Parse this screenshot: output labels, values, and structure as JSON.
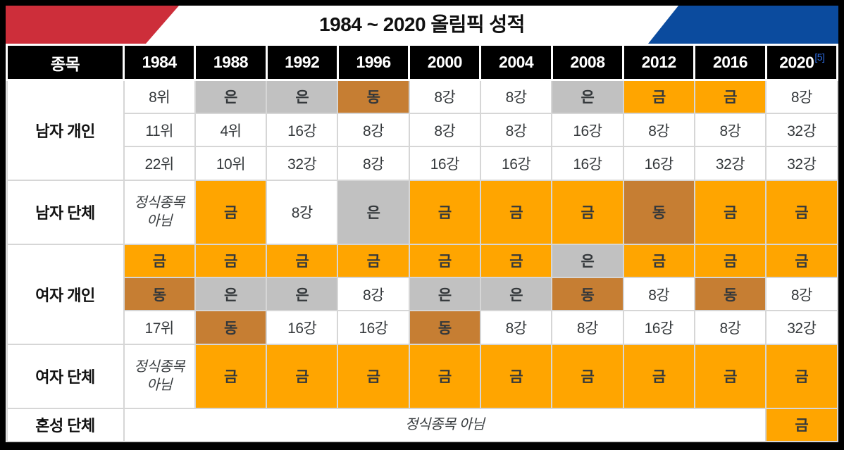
{
  "banner": {
    "title": "1984 ~ 2020 올림픽 성적",
    "left_flag_color": "#CD2E3A",
    "right_flag_color": "#0B4B9E"
  },
  "colors": {
    "gold": "#FFA500",
    "silver": "#C1C1C1",
    "bronze": "#C67E33",
    "header_bg": "#000000",
    "header_text": "#FFFFFF",
    "footnote": "#2E6CDF"
  },
  "table": {
    "corner_header": "종목",
    "years": [
      "1984",
      "1988",
      "1992",
      "1996",
      "2000",
      "2004",
      "2008",
      "2012",
      "2016",
      "2020"
    ],
    "footnote": {
      "year": "2020",
      "marker": "[5]"
    },
    "groups": [
      {
        "label": "남자 개인",
        "rows": [
          [
            {
              "text": "8위"
            },
            {
              "text": "은",
              "medal": "silver"
            },
            {
              "text": "은",
              "medal": "silver"
            },
            {
              "text": "동",
              "medal": "bronze"
            },
            {
              "text": "8강"
            },
            {
              "text": "8강"
            },
            {
              "text": "은",
              "medal": "silver"
            },
            {
              "text": "금",
              "medal": "gold"
            },
            {
              "text": "금",
              "medal": "gold"
            },
            {
              "text": "8강"
            }
          ],
          [
            {
              "text": "11위"
            },
            {
              "text": "4위"
            },
            {
              "text": "16강"
            },
            {
              "text": "8강"
            },
            {
              "text": "8강"
            },
            {
              "text": "8강"
            },
            {
              "text": "16강"
            },
            {
              "text": "8강"
            },
            {
              "text": "8강"
            },
            {
              "text": "32강"
            }
          ],
          [
            {
              "text": "22위"
            },
            {
              "text": "10위"
            },
            {
              "text": "32강"
            },
            {
              "text": "8강"
            },
            {
              "text": "16강"
            },
            {
              "text": "16강"
            },
            {
              "text": "16강"
            },
            {
              "text": "16강"
            },
            {
              "text": "32강"
            },
            {
              "text": "32강"
            }
          ]
        ]
      },
      {
        "label": "남자 단체",
        "tall": true,
        "rows": [
          [
            {
              "text": "정식종목 아님",
              "style": "not-official"
            },
            {
              "text": "금",
              "medal": "gold"
            },
            {
              "text": "8강"
            },
            {
              "text": "은",
              "medal": "silver"
            },
            {
              "text": "금",
              "medal": "gold"
            },
            {
              "text": "금",
              "medal": "gold"
            },
            {
              "text": "금",
              "medal": "gold"
            },
            {
              "text": "동",
              "medal": "bronze"
            },
            {
              "text": "금",
              "medal": "gold"
            },
            {
              "text": "금",
              "medal": "gold"
            }
          ]
        ]
      },
      {
        "label": "여자 개인",
        "rows": [
          [
            {
              "text": "금",
              "medal": "gold"
            },
            {
              "text": "금",
              "medal": "gold"
            },
            {
              "text": "금",
              "medal": "gold"
            },
            {
              "text": "금",
              "medal": "gold"
            },
            {
              "text": "금",
              "medal": "gold"
            },
            {
              "text": "금",
              "medal": "gold"
            },
            {
              "text": "은",
              "medal": "silver"
            },
            {
              "text": "금",
              "medal": "gold"
            },
            {
              "text": "금",
              "medal": "gold"
            },
            {
              "text": "금",
              "medal": "gold"
            }
          ],
          [
            {
              "text": "동",
              "medal": "bronze"
            },
            {
              "text": "은",
              "medal": "silver"
            },
            {
              "text": "은",
              "medal": "silver"
            },
            {
              "text": "8강"
            },
            {
              "text": "은",
              "medal": "silver"
            },
            {
              "text": "은",
              "medal": "silver"
            },
            {
              "text": "동",
              "medal": "bronze"
            },
            {
              "text": "8강"
            },
            {
              "text": "동",
              "medal": "bronze"
            },
            {
              "text": "8강"
            }
          ],
          [
            {
              "text": "17위"
            },
            {
              "text": "동",
              "medal": "bronze"
            },
            {
              "text": "16강"
            },
            {
              "text": "16강"
            },
            {
              "text": "동",
              "medal": "bronze"
            },
            {
              "text": "8강"
            },
            {
              "text": "8강"
            },
            {
              "text": "16강"
            },
            {
              "text": "8강"
            },
            {
              "text": "32강"
            }
          ]
        ]
      },
      {
        "label": "여자 단체",
        "tall": true,
        "rows": [
          [
            {
              "text": "정식종목 아님",
              "style": "not-official"
            },
            {
              "text": "금",
              "medal": "gold"
            },
            {
              "text": "금",
              "medal": "gold"
            },
            {
              "text": "금",
              "medal": "gold"
            },
            {
              "text": "금",
              "medal": "gold"
            },
            {
              "text": "금",
              "medal": "gold"
            },
            {
              "text": "금",
              "medal": "gold"
            },
            {
              "text": "금",
              "medal": "gold"
            },
            {
              "text": "금",
              "medal": "gold"
            },
            {
              "text": "금",
              "medal": "gold"
            }
          ]
        ]
      },
      {
        "label": "혼성 단체",
        "rows": [
          [
            {
              "text": "정식종목 아님",
              "style": "not-official",
              "colspan": 9
            },
            {
              "text": "금",
              "medal": "gold"
            }
          ]
        ]
      }
    ]
  }
}
